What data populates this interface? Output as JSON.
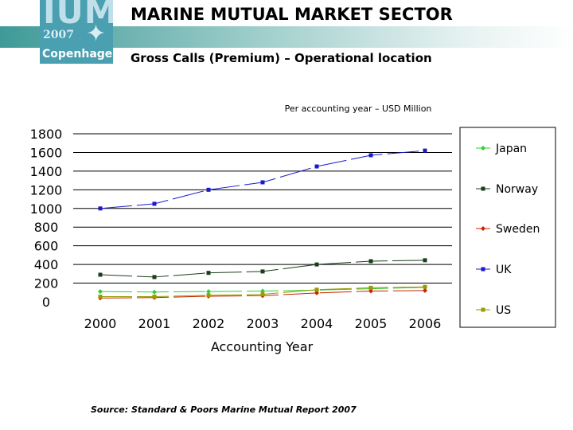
{
  "header": {
    "title": "MARINE MUTUAL MARKET SECTOR",
    "subtitle": "Gross Calls (Premium) – Operational location"
  },
  "logo": {
    "mark": "IUMI",
    "year": "2007",
    "city": "Copenhagen"
  },
  "footer": {
    "source": "Source: Standard & Poors Marine Mutual Report 2007"
  },
  "chart_data": {
    "type": "line",
    "title": "Per accounting year – USD Million",
    "xlabel": "Accounting Year",
    "ylabel": "",
    "categories": [
      "2000",
      "2001",
      "2002",
      "2003",
      "2004",
      "2005",
      "2006"
    ],
    "ylim": [
      0,
      1800
    ],
    "yticks": [
      0,
      200,
      400,
      600,
      800,
      1000,
      1200,
      1400,
      1600,
      1800
    ],
    "grid": true,
    "legend": "right",
    "series": [
      {
        "name": "Japan",
        "color": "#33cc33",
        "marker": "diamond",
        "values": [
          110,
          105,
          110,
          115,
          125,
          140,
          155
        ]
      },
      {
        "name": "Norway",
        "color": "#1a3d1a",
        "marker": "square",
        "values": [
          290,
          265,
          310,
          325,
          400,
          435,
          445
        ]
      },
      {
        "name": "Sweden",
        "color": "#cc2200",
        "marker": "diamond",
        "values": [
          40,
          45,
          60,
          65,
          95,
          115,
          120
        ]
      },
      {
        "name": "UK",
        "color": "#1a1acc",
        "marker": "square",
        "values": [
          1000,
          1050,
          1200,
          1280,
          1450,
          1570,
          1620
        ]
      },
      {
        "name": "US",
        "color": "#999900",
        "marker": "square",
        "values": [
          55,
          55,
          70,
          80,
          130,
          150,
          160
        ]
      }
    ]
  }
}
